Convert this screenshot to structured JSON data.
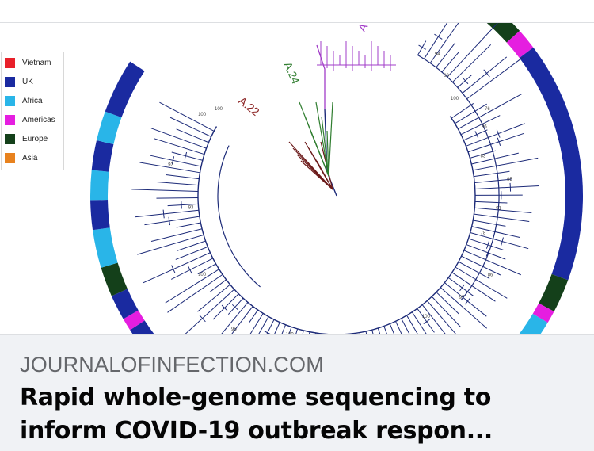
{
  "link_preview": {
    "domain": "JOURNALOFINFECTION.COM",
    "headline_line1": "Rapid whole-genome sequencing to",
    "headline_line2": "inform COVID-19 outbreak respon..."
  },
  "figure": {
    "legend": [
      {
        "label": "Vietnam",
        "color": "#e8202a"
      },
      {
        "label": "UK",
        "color": "#1a2aa0"
      },
      {
        "label": "Africa",
        "color": "#29b5e8"
      },
      {
        "label": "Americas",
        "color": "#e51ee0"
      },
      {
        "label": "Europe",
        "color": "#14401a"
      },
      {
        "label": "Asia",
        "color": "#e8821e"
      }
    ],
    "clade_labels": {
      "a22": "A.22",
      "a24": "A.24",
      "a_top": "A"
    },
    "bootstrap_labels": [
      "100",
      "100",
      "93",
      "93",
      "100",
      "95",
      "100",
      "98",
      "94",
      "100",
      "97",
      "86",
      "78",
      "91",
      "95",
      "83",
      "96",
      "76",
      "100",
      "88",
      "94"
    ],
    "tree_colors": {
      "backbone": "#1c2a78",
      "a22_clade": "#6b1a1a",
      "a24_clade": "#2f7d2f",
      "purple_clade": "#a23cc8"
    }
  }
}
